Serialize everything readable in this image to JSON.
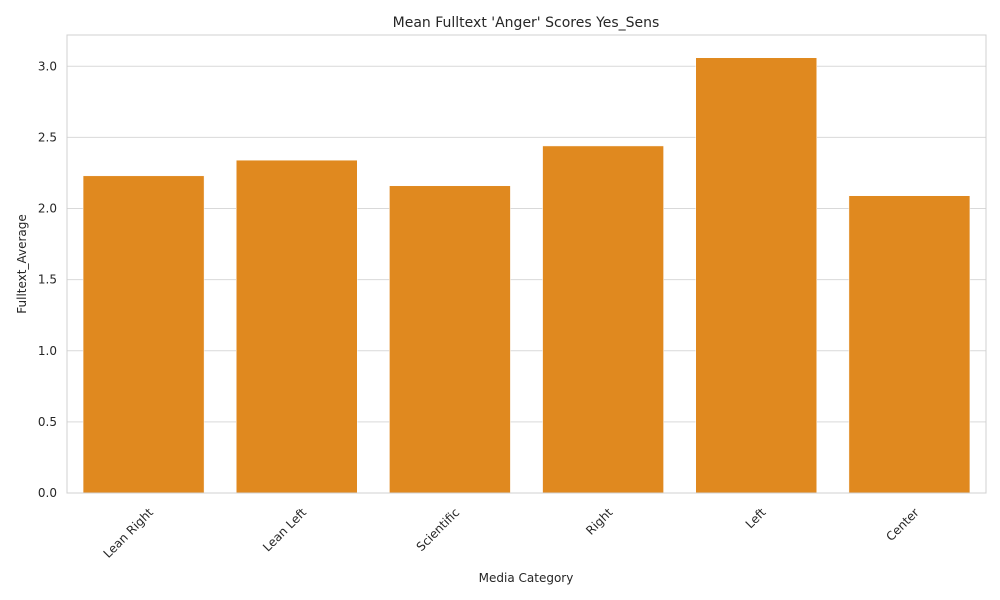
{
  "chart_data": {
    "type": "bar",
    "title": "Mean Fulltext 'Anger' Scores Yes_Sens",
    "xlabel": "Media Category",
    "ylabel": "Fulltext_Average",
    "categories": [
      "Lean Right",
      "Lean Left",
      "Scientific",
      "Right",
      "Left",
      "Center"
    ],
    "values": [
      2.23,
      2.34,
      2.16,
      2.44,
      3.06,
      2.09
    ],
    "ylim": [
      0,
      3.22
    ],
    "yticks": [
      0.0,
      0.5,
      1.0,
      1.5,
      2.0,
      2.5,
      3.0
    ],
    "ytick_labels": [
      "0.0",
      "0.5",
      "1.0",
      "1.5",
      "2.0",
      "2.5",
      "3.0"
    ],
    "grid": true,
    "bar_color": "#e0891f",
    "grid_color": "#d9d9d9"
  }
}
